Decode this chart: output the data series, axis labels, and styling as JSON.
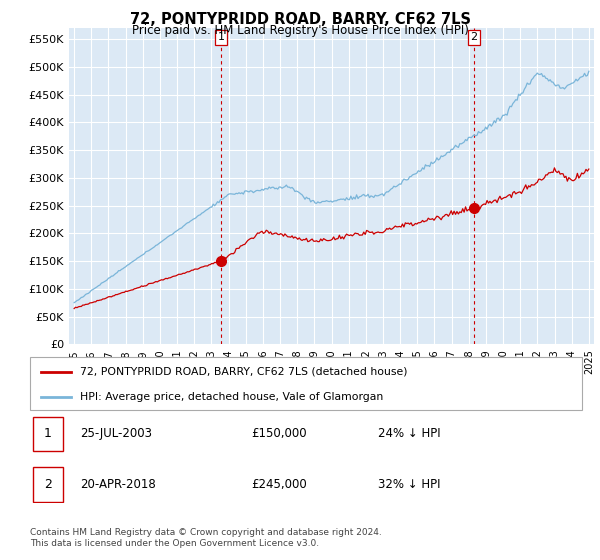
{
  "title": "72, PONTYPRIDD ROAD, BARRY, CF62 7LS",
  "subtitle": "Price paid vs. HM Land Registry's House Price Index (HPI)",
  "hpi_color": "#7ab5d9",
  "price_color": "#cc0000",
  "marker_color": "#cc0000",
  "vline_color": "#cc0000",
  "plot_bg": "#dce9f5",
  "grid_color": "#ffffff",
  "ylim": [
    0,
    570000
  ],
  "yticks": [
    0,
    50000,
    100000,
    150000,
    200000,
    250000,
    300000,
    350000,
    400000,
    450000,
    500000,
    550000
  ],
  "ytick_labels": [
    "£0",
    "£50K",
    "£100K",
    "£150K",
    "£200K",
    "£250K",
    "£300K",
    "£350K",
    "£400K",
    "£450K",
    "£500K",
    "£550K"
  ],
  "xstart_year": 1995,
  "xend_year": 2025,
  "sale1_date": 2003.56,
  "sale1_price": 150000,
  "sale1_label": "1",
  "sale2_date": 2018.3,
  "sale2_price": 245000,
  "sale2_label": "2",
  "legend_line1": "72, PONTYPRIDD ROAD, BARRY, CF62 7LS (detached house)",
  "legend_line2": "HPI: Average price, detached house, Vale of Glamorgan",
  "table_row1_num": "1",
  "table_row1_date": "25-JUL-2003",
  "table_row1_price": "£150,000",
  "table_row1_hpi": "24% ↓ HPI",
  "table_row2_num": "2",
  "table_row2_date": "20-APR-2018",
  "table_row2_price": "£245,000",
  "table_row2_hpi": "32% ↓ HPI",
  "footnote": "Contains HM Land Registry data © Crown copyright and database right 2024.\nThis data is licensed under the Open Government Licence v3.0."
}
